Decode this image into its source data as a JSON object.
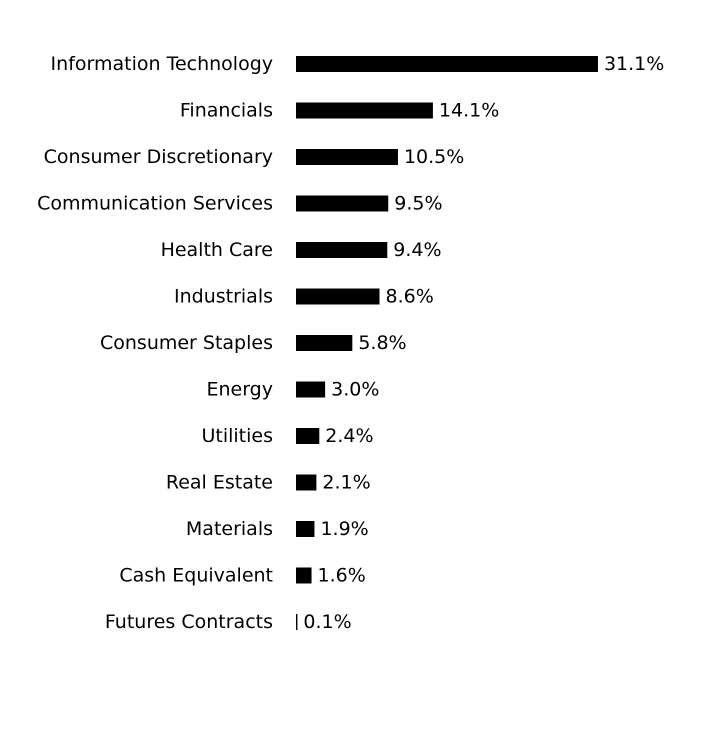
{
  "chart_data": {
    "type": "bar",
    "orientation": "horizontal",
    "categories": [
      "Information Technology",
      "Financials",
      "Consumer Discretionary",
      "Communication Services",
      "Health Care",
      "Industrials",
      "Consumer Staples",
      "Energy",
      "Utilities",
      "Real Estate",
      "Materials",
      "Cash Equivalent",
      "Futures Contracts"
    ],
    "values": [
      31.1,
      14.1,
      10.5,
      9.5,
      9.4,
      8.6,
      5.8,
      3.0,
      2.4,
      2.1,
      1.9,
      1.6,
      0.1
    ],
    "value_labels": [
      "31.1%",
      "14.1%",
      "10.5%",
      "9.5%",
      "9.4%",
      "8.6%",
      "5.8%",
      "3.0%",
      "2.4%",
      "2.1%",
      "1.9%",
      "1.6%",
      "0.1%"
    ],
    "title": "",
    "xlabel": "",
    "ylabel": "",
    "grid": false,
    "legend": "none",
    "bar_color": "#000000"
  }
}
